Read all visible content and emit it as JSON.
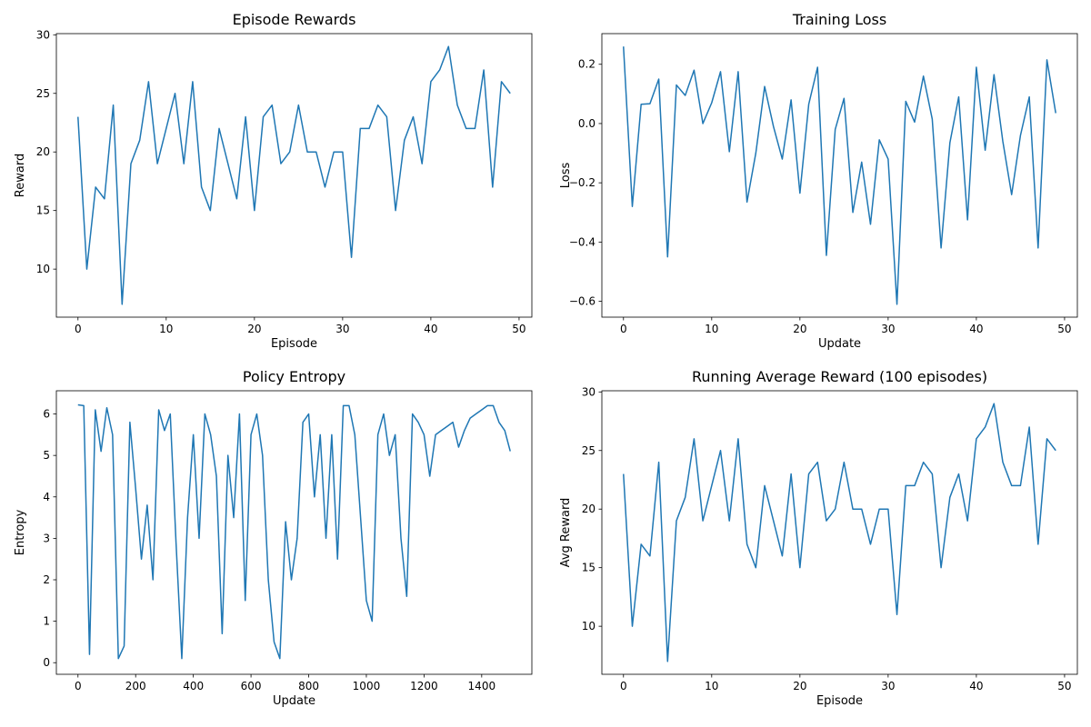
{
  "chart_data": [
    {
      "type": "line",
      "title": "Episode Rewards",
      "xlabel": "Episode",
      "ylabel": "Reward",
      "color": "#1f77b4",
      "x": [
        0,
        1,
        2,
        3,
        4,
        5,
        6,
        7,
        8,
        9,
        10,
        11,
        12,
        13,
        14,
        15,
        16,
        17,
        18,
        19,
        20,
        21,
        22,
        23,
        24,
        25,
        26,
        27,
        28,
        29,
        30,
        31,
        32,
        33,
        34,
        35,
        36,
        37,
        38,
        39,
        40,
        41,
        42,
        43,
        44,
        45,
        46,
        47,
        48,
        49
      ],
      "values": [
        23,
        10,
        17,
        16,
        24,
        7,
        19,
        21,
        26,
        19,
        22,
        25,
        19,
        26,
        17,
        15,
        22,
        19,
        16,
        23,
        15,
        23,
        24,
        19,
        20,
        24,
        20,
        20,
        17,
        20,
        20,
        11,
        22,
        22,
        24,
        23,
        15,
        21,
        23,
        19,
        26,
        27,
        29,
        24,
        22,
        22,
        27,
        17,
        26,
        25
      ],
      "xlim": [
        -2.45,
        51.45
      ],
      "ylim": [
        5.9,
        30.1
      ],
      "xticks": [
        0,
        10,
        20,
        30,
        40,
        50
      ],
      "yticks": [
        10,
        15,
        20,
        25,
        30
      ]
    },
    {
      "type": "line",
      "title": "Training Loss",
      "xlabel": "Update",
      "ylabel": "Loss",
      "color": "#1f77b4",
      "x": [
        0,
        1,
        2,
        3,
        4,
        5,
        6,
        7,
        8,
        9,
        10,
        11,
        12,
        13,
        14,
        15,
        16,
        17,
        18,
        19,
        20,
        21,
        22,
        23,
        24,
        25,
        26,
        27,
        28,
        29,
        30,
        31,
        32,
        33,
        34,
        35,
        36,
        37,
        38,
        39,
        40,
        41,
        42,
        43,
        44,
        45,
        46,
        47,
        48,
        49
      ],
      "values": [
        0.26,
        -0.28,
        0.065,
        0.067,
        0.15,
        -0.45,
        0.13,
        0.095,
        0.18,
        0.0,
        0.07,
        0.175,
        -0.095,
        0.175,
        -0.265,
        -0.1,
        0.125,
        -0.01,
        -0.12,
        0.08,
        -0.235,
        0.065,
        0.19,
        -0.445,
        -0.02,
        0.085,
        -0.3,
        -0.13,
        -0.34,
        -0.055,
        -0.12,
        -0.61,
        0.075,
        0.005,
        0.16,
        0.015,
        -0.42,
        -0.065,
        0.09,
        -0.325,
        0.19,
        -0.09,
        0.165,
        -0.06,
        -0.24,
        -0.04,
        0.09,
        -0.42,
        0.215,
        0.035
      ],
      "xlim": [
        -2.45,
        51.45
      ],
      "ylim": [
        -0.6535,
        0.3035
      ],
      "xticks": [
        0,
        10,
        20,
        30,
        40,
        50
      ],
      "yticks": [
        {
          "value": -0.6,
          "label": "−0.6"
        },
        {
          "value": -0.4,
          "label": "−0.4"
        },
        {
          "value": -0.2,
          "label": "−0.2"
        },
        {
          "value": 0,
          "label": "0.0"
        },
        {
          "value": 0.2,
          "label": "0.2"
        }
      ]
    },
    {
      "type": "line",
      "title": "Policy Entropy",
      "xlabel": "Update",
      "ylabel": "Entropy",
      "color": "#1f77b4",
      "x": [
        0,
        20,
        40,
        60,
        80,
        100,
        120,
        140,
        160,
        180,
        200,
        220,
        240,
        260,
        280,
        300,
        320,
        340,
        360,
        380,
        400,
        420,
        440,
        460,
        480,
        500,
        520,
        540,
        560,
        580,
        600,
        620,
        640,
        660,
        680,
        700,
        720,
        740,
        760,
        780,
        800,
        820,
        840,
        860,
        880,
        900,
        920,
        940,
        960,
        980,
        1000,
        1020,
        1040,
        1060,
        1080,
        1100,
        1120,
        1140,
        1160,
        1180,
        1200,
        1220,
        1240,
        1260,
        1280,
        1300,
        1320,
        1340,
        1360,
        1380,
        1400,
        1420,
        1440,
        1460,
        1480,
        1499
      ],
      "values": [
        6.22,
        6.2,
        0.2,
        6.1,
        5.1,
        6.15,
        5.5,
        0.1,
        0.4,
        5.8,
        4.2,
        2.5,
        3.8,
        2.0,
        6.1,
        5.6,
        6.0,
        2.9,
        0.1,
        3.5,
        5.5,
        3.0,
        6.0,
        5.5,
        4.5,
        0.7,
        5.0,
        3.5,
        6.0,
        1.5,
        5.5,
        6.0,
        5.0,
        2.0,
        0.5,
        0.1,
        3.4,
        2.0,
        3.0,
        5.8,
        6.0,
        4.0,
        5.5,
        3.0,
        5.5,
        2.5,
        6.2,
        6.2,
        5.5,
        3.5,
        1.5,
        1.0,
        5.5,
        6.0,
        5.0,
        5.5,
        3.0,
        1.6,
        6.0,
        5.8,
        5.5,
        4.5,
        5.5,
        5.6,
        5.7,
        5.8,
        5.2,
        5.6,
        5.9,
        6.0,
        6.1,
        6.2,
        6.2,
        5.8,
        5.6,
        5.1
      ],
      "xlim": [
        -74.95,
        1573.95
      ],
      "ylim": [
        -0.28,
        6.56
      ],
      "xticks": [
        0,
        200,
        400,
        600,
        800,
        1000,
        1200,
        1400
      ],
      "yticks": [
        0,
        1,
        2,
        3,
        4,
        5,
        6
      ]
    },
    {
      "type": "line",
      "title": "Running Average Reward (100 episodes)",
      "xlabel": "Episode",
      "ylabel": "Avg Reward",
      "color": "#1f77b4",
      "x": [
        0,
        1,
        2,
        3,
        4,
        5,
        6,
        7,
        8,
        9,
        10,
        11,
        12,
        13,
        14,
        15,
        16,
        17,
        18,
        19,
        20,
        21,
        22,
        23,
        24,
        25,
        26,
        27,
        28,
        29,
        30,
        31,
        32,
        33,
        34,
        35,
        36,
        37,
        38,
        39,
        40,
        41,
        42,
        43,
        44,
        45,
        46,
        47,
        48,
        49
      ],
      "values": [
        23,
        10,
        17,
        16,
        24,
        7,
        19,
        21,
        26,
        19,
        22,
        25,
        19,
        26,
        17,
        15,
        22,
        19,
        16,
        23,
        15,
        23,
        24,
        19,
        20,
        24,
        20,
        20,
        17,
        20,
        20,
        11,
        22,
        22,
        24,
        23,
        15,
        21,
        23,
        19,
        26,
        27,
        29,
        24,
        22,
        22,
        27,
        17,
        26,
        25
      ],
      "xlim": [
        -2.45,
        51.45
      ],
      "ylim": [
        5.9,
        30.1
      ],
      "xticks": [
        0,
        10,
        20,
        30,
        40,
        50
      ],
      "yticks": [
        10,
        15,
        20,
        25,
        30
      ]
    }
  ]
}
